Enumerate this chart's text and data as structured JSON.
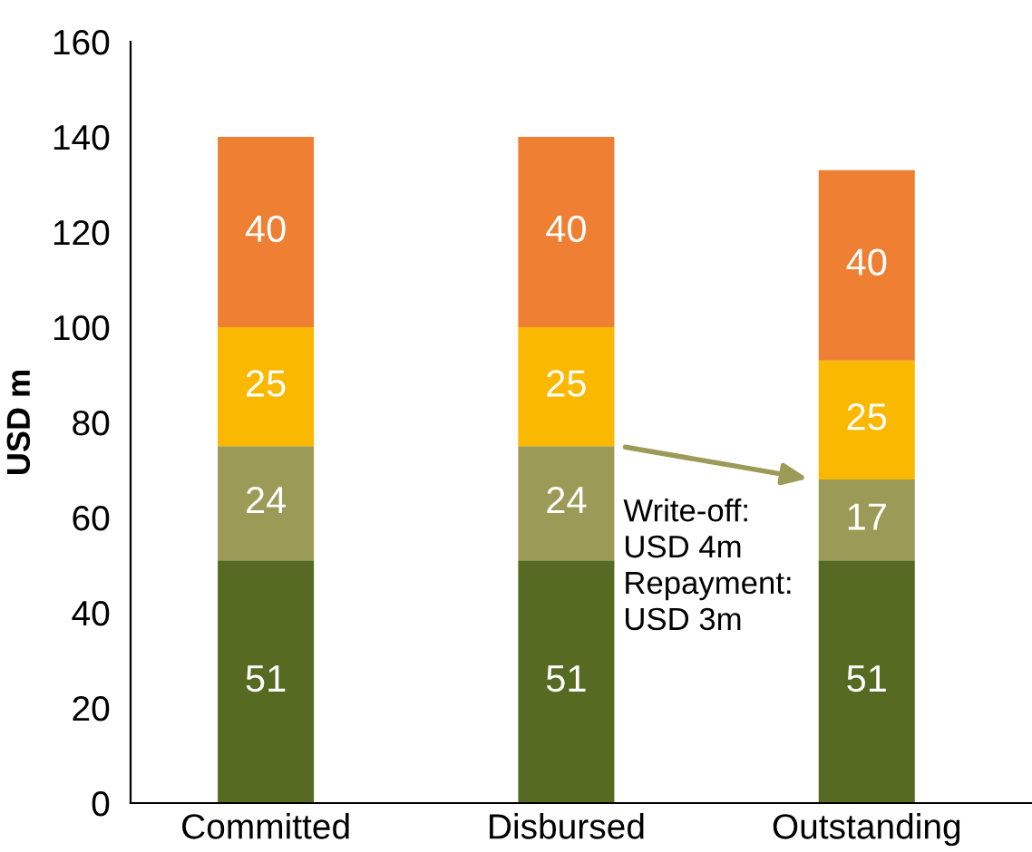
{
  "chart_data": {
    "type": "bar",
    "stacked": true,
    "ylabel": "USD m",
    "categories": [
      "Committed",
      "Disbursed",
      "Outstanding"
    ],
    "series": [
      {
        "color": "#566a22",
        "values": [
          51,
          51,
          51
        ]
      },
      {
        "color": "#9c9a57",
        "values": [
          24,
          24,
          17
        ]
      },
      {
        "color": "#fbb800",
        "values": [
          25,
          25,
          25
        ]
      },
      {
        "color": "#ee7f33",
        "values": [
          40,
          40,
          40
        ]
      }
    ],
    "ylim": [
      0,
      160
    ],
    "yticks": [
      0,
      20,
      40,
      60,
      80,
      100,
      120,
      140,
      160
    ],
    "data_labels": true,
    "grid": false,
    "legend": false,
    "annotations": [
      {
        "text": "Write-off:\nUSD 4m\nRepayment:\nUSD 3m",
        "x": "Outstanding",
        "y": 68
      }
    ]
  }
}
